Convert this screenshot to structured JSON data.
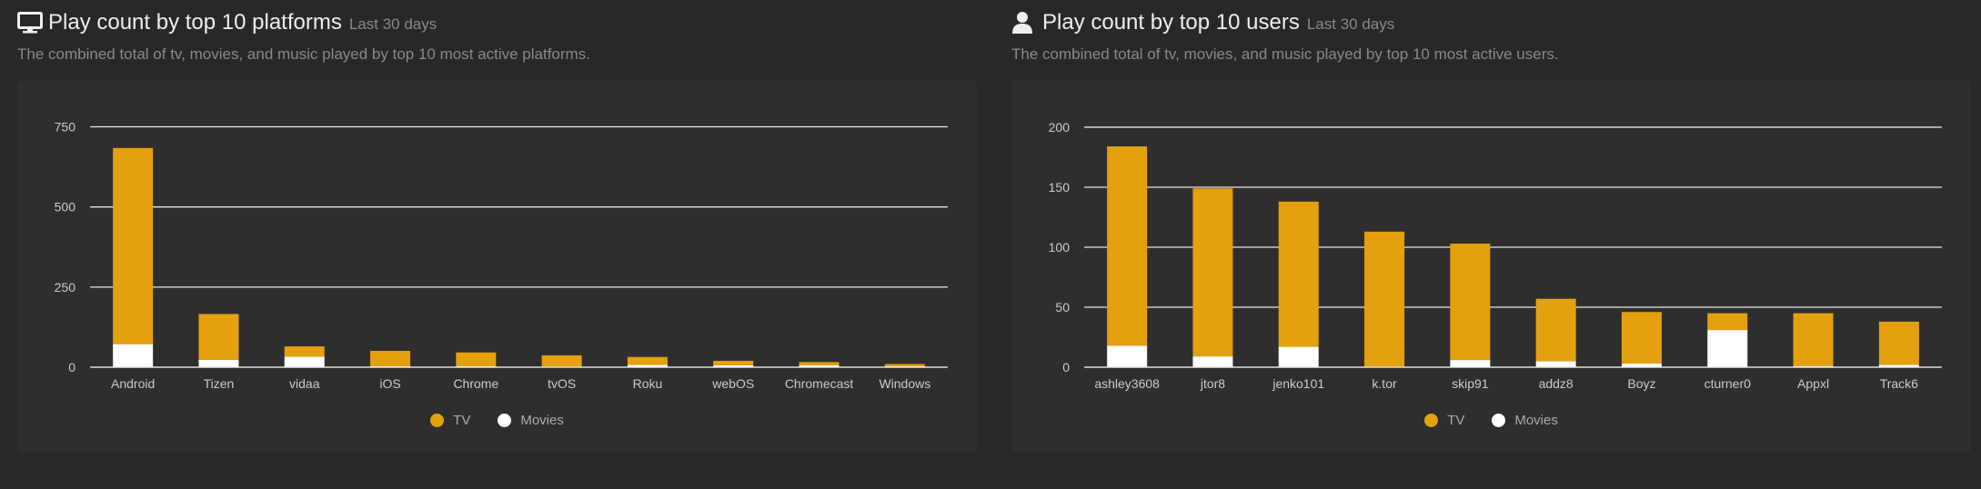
{
  "colors": {
    "tv": "#e5a00d",
    "movies": "#ffffff",
    "grid": "#e6e6e6"
  },
  "panels": {
    "platforms": {
      "icon": "monitor-icon",
      "title": "Play count by top 10 platforms",
      "range": "Last 30 days",
      "description": "The combined total of tv, movies, and music played by top 10 most active platforms.",
      "legend": {
        "tv": "TV",
        "movies": "Movies"
      }
    },
    "users": {
      "icon": "user-icon",
      "title": "Play count by top 10 users",
      "range": "Last 30 days",
      "description": "The combined total of tv, movies, and music played by top 10 most active users.",
      "legend": {
        "tv": "TV",
        "movies": "Movies"
      }
    }
  },
  "chart_data": [
    {
      "type": "bar",
      "stacked": true,
      "categories": [
        "Android",
        "Tizen",
        "vidaa",
        "iOS",
        "Chrome",
        "tvOS",
        "Roku",
        "webOS",
        "Chromecast",
        "Windows"
      ],
      "series": [
        {
          "name": "TV",
          "values": [
            612,
            143,
            32,
            48,
            43,
            35,
            25,
            14,
            10,
            7
          ]
        },
        {
          "name": "Movies",
          "values": [
            72,
            23,
            33,
            3,
            3,
            2,
            7,
            6,
            6,
            3
          ]
        }
      ],
      "yticks": [
        0,
        250,
        500,
        750
      ],
      "ylim": [
        0,
        760
      ],
      "grid": true,
      "legend_position": "bottom-center"
    },
    {
      "type": "bar",
      "stacked": true,
      "categories": [
        "ashley3608",
        "jtor8",
        "jenko101",
        "k.tor",
        "skip91",
        "addz8",
        "Boyz",
        "cturner0",
        "Appxl",
        "Track6"
      ],
      "series": [
        {
          "name": "TV",
          "values": [
            166,
            140,
            121,
            113,
            97,
            52,
            43,
            14,
            44,
            36
          ]
        },
        {
          "name": "Movies",
          "values": [
            18,
            9,
            17,
            0,
            6,
            5,
            3,
            31,
            1,
            2
          ]
        }
      ],
      "yticks": [
        0,
        50,
        100,
        150,
        200
      ],
      "ylim": [
        0,
        203
      ],
      "grid": true,
      "legend_position": "bottom-center"
    }
  ]
}
